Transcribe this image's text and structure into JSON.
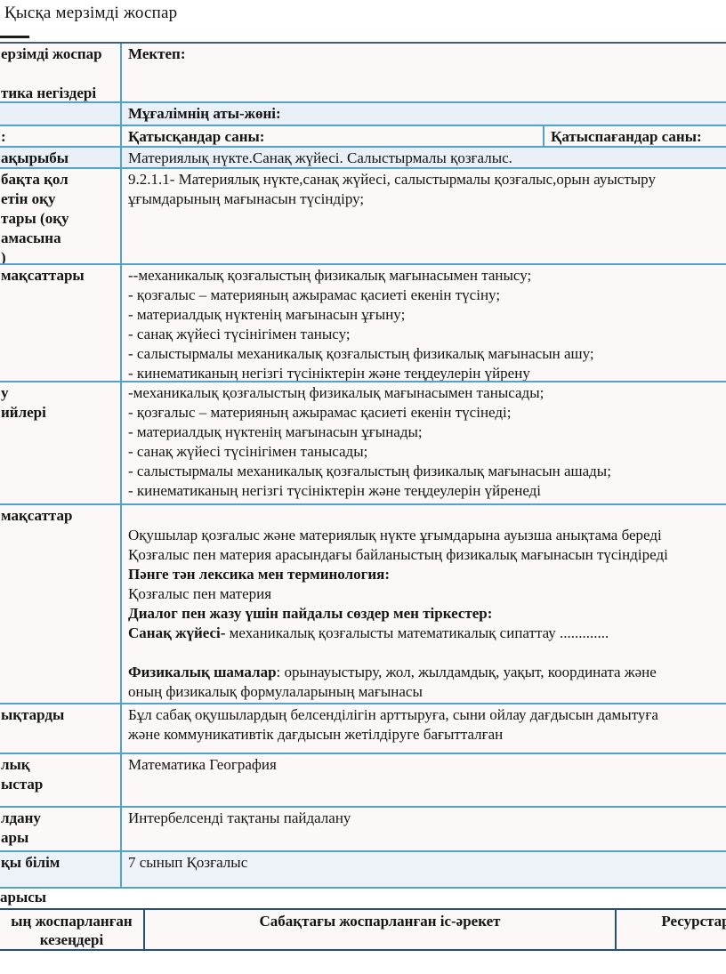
{
  "page_title": "Қысқа мерзімді жоспар",
  "colors": {
    "border_blue": "#4fa3cc",
    "border_dark": "#24507e",
    "row_background": "#fcf8f8",
    "row_tint": "#e9f0f7",
    "text": "#141414"
  },
  "table": {
    "rows": [
      {
        "name": "plan-school",
        "left_lines": [
          "ерзімді жоспар",
          "",
          "тика негіздері"
        ],
        "cells": [
          {
            "lines": [
              {
                "t": "Мектеп:",
                "b": true
              }
            ]
          }
        ]
      },
      {
        "name": "teacher",
        "left_lines": [
          ""
        ],
        "cells": [
          {
            "lines": [
              {
                "t": "Мұғалімнің аты-жөні:",
                "b": true
              }
            ]
          }
        ]
      },
      {
        "name": "attendance",
        "left_lines": [
          ":"
        ],
        "cells": [
          {
            "lines": [
              {
                "t": "Қатысқандар саны:",
                "b": true
              }
            ]
          },
          {
            "lines": [
              {
                "t": "Қатыспағандар саны:",
                "b": true
              }
            ]
          }
        ]
      },
      {
        "name": "lesson-topic",
        "left_lines": [
          "ақырыбы"
        ],
        "cells": [
          {
            "lines": [
              {
                "t": "Материялық нүкте.Санақ жүйесі. Салыстырмалы қозғалыс.",
                "b": false
              }
            ]
          }
        ]
      },
      {
        "name": "curriculum-objectives",
        "left_lines": [
          "бақта қол",
          "етін оқу",
          "тары (оқу",
          "амасына",
          ")"
        ],
        "cells": [
          {
            "lines": [
              {
                "t": "9.2.1.1- Материялық нүкте,санақ жүйесі, салыстырмалы қозғалыс,орын ауыстыру",
                "b": false
              },
              {
                "t": "ұғымдарының мағынасын түсіндіру;",
                "b": false
              }
            ]
          }
        ]
      },
      {
        "name": "lesson-goals",
        "left_lines": [
          "мақсаттары"
        ],
        "cells": [
          {
            "lines": [
              {
                "t": "--механикалық қозғалыстың физикалық мағынасымен танысу;",
                "b": false
              },
              {
                "t": "- қозғалыс – материяның ажырамас қасиеті  екенін түсіну;",
                "b": false
              },
              {
                "t": " - материалдық нүктенің  мағынасын  ұғыну;",
                "b": false
              },
              {
                "t": "- санақ жүйесі түсінігімен танысу;",
                "b": false
              },
              {
                "t": "- салыстырмалы механикалық қозғалыстың физикалық мағынасын ашу;",
                "b": false
              },
              {
                "t": "- кинематиканың негізгі түсініктерін және теңдеулерін үйрену",
                "b": false
              }
            ]
          }
        ]
      },
      {
        "name": "assessment-criteria",
        "left_lines": [
          "у",
          "ийлері"
        ],
        "cells": [
          {
            "lines": [
              {
                "t": "-механикалық қозғалыстың физикалық мағынасымен танысады;",
                "b": false
              },
              {
                "t": "- қозғалыс – материяның ажырамас қасиеті  екенін түсінеді;",
                "b": false
              },
              {
                "t": " - материалдық нүктенің  мағынасын  ұғынады;",
                "b": false
              },
              {
                "t": "- санақ жүйесі түсінігімен танысады;",
                "b": false
              },
              {
                "t": "- салыстырмалы механикалық қозғалыстың физикалық мағынасын ашады;",
                "b": false
              },
              {
                "t": "- кинематиканың негізгі түсініктерін және теңдеулерін үйренеді",
                "b": false
              }
            ]
          }
        ]
      },
      {
        "name": "language-objectives",
        "left_lines": [
          "мақсаттар"
        ],
        "cells": [
          {
            "lines": [
              {
                "t": "",
                "b": false
              },
              {
                "t": "Оқушылар қозғалыс және материялық нүкте ұғымдарына ауызша анықтама береді",
                "b": false
              },
              {
                "t": "Қозғалыс пен материя арасындағы байланыстың физикалық мағынасын  түсіндіреді",
                "b": false
              },
              {
                "t": "Пәнге тән лексика мен терминология:",
                "b": true
              },
              {
                "t": "Қозғалыс пен материя",
                "b": false
              },
              {
                "t": "Диалог пен жазу үшін пайдалы сөздер мен тіркестер:",
                "b": true
              },
              {
                "bp": "Санақ жүйесі-",
                "t": " механикалық қозғалысты математикалық сипаттау .............",
                "b": false
              },
              {
                "t": "",
                "b": false
              },
              {
                "bp": "Физикалық шамалар",
                "t": ": орынауыстыру, жол, жылдамдық,  уақыт, координата және",
                "b": false
              },
              {
                "t": "оның физикалық формулаларының мағынасы",
                "b": false
              }
            ]
          }
        ]
      },
      {
        "name": "values",
        "left_lines": [
          "ықтарды"
        ],
        "cells": [
          {
            "lines": [
              {
                "t": "Бұл сабақ оқушылардың белсенділігін арттыруға, сыни ойлау дағдысын дамытуға",
                "b": false
              },
              {
                "t": "және коммуникативтік дағдысын жетілдіруге бағытталған",
                "b": false
              }
            ]
          }
        ]
      },
      {
        "name": "cross-curricular-links",
        "left_lines": [
          "лық",
          "ыстар"
        ],
        "cells": [
          {
            "lines": [
              {
                "t": "Математика География",
                "b": false
              }
            ]
          }
        ]
      },
      {
        "name": "ict-skills",
        "left_lines": [
          "лдану",
          "ары"
        ],
        "cells": [
          {
            "lines": [
              {
                "t": "Интербелсенді тақтаны пайдалану",
                "b": false
              }
            ]
          }
        ]
      },
      {
        "name": "prior-knowledge",
        "left_lines": [
          "қы білім"
        ],
        "cells": [
          {
            "lines": [
              {
                "t": "7 сынып Қозғалыс",
                "b": false
              }
            ]
          }
        ]
      }
    ]
  },
  "lesson_flow": {
    "section_label": "арысы",
    "header": {
      "stage_lines": [
        "ың жоспарланған",
        "кезеңдері"
      ],
      "activity": "Сабақтағы жоспарланған іс-әрекет",
      "resources": "Ресурстар"
    }
  }
}
